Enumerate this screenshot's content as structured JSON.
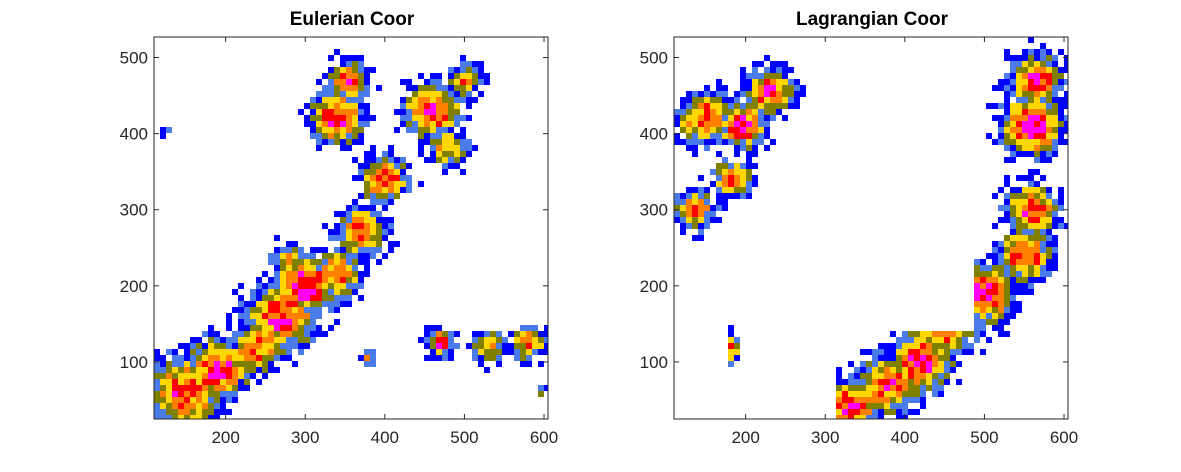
{
  "figure": {
    "background": "#ffffff",
    "colormap": [
      "#0000ff",
      "#4a7be8",
      "#808000",
      "#ffd700",
      "#ff8000",
      "#ff0000",
      "#ff00ff"
    ]
  },
  "chart_data": [
    {
      "type": "heatmap",
      "title": "Eulerian Coor",
      "xlabel": "",
      "ylabel": "",
      "xlim": [
        110,
        605
      ],
      "ylim": [
        25,
        527
      ],
      "xticks": [
        200,
        300,
        400,
        500,
        600
      ],
      "yticks": [
        100,
        200,
        300,
        400,
        500
      ],
      "grid": false,
      "description": "radar reflectivity field; precipitation band oriented SW-NE",
      "blobs": [
        {
          "x": 150,
          "y": 60,
          "r": 55,
          "intensity": 0.85
        },
        {
          "x": 190,
          "y": 90,
          "r": 45,
          "intensity": 0.9
        },
        {
          "x": 240,
          "y": 120,
          "r": 40,
          "intensity": 0.8
        },
        {
          "x": 270,
          "y": 160,
          "r": 50,
          "intensity": 0.9
        },
        {
          "x": 300,
          "y": 200,
          "r": 45,
          "intensity": 0.95
        },
        {
          "x": 340,
          "y": 215,
          "r": 35,
          "intensity": 0.85
        },
        {
          "x": 370,
          "y": 270,
          "r": 38,
          "intensity": 0.8
        },
        {
          "x": 400,
          "y": 340,
          "r": 35,
          "intensity": 0.85
        },
        {
          "x": 340,
          "y": 420,
          "r": 40,
          "intensity": 0.9
        },
        {
          "x": 355,
          "y": 470,
          "r": 30,
          "intensity": 0.85
        },
        {
          "x": 460,
          "y": 430,
          "r": 40,
          "intensity": 0.9
        },
        {
          "x": 500,
          "y": 470,
          "r": 25,
          "intensity": 0.7
        },
        {
          "x": 480,
          "y": 380,
          "r": 28,
          "intensity": 0.7
        },
        {
          "x": 280,
          "y": 235,
          "r": 28,
          "intensity": 0.6
        },
        {
          "x": 470,
          "y": 125,
          "r": 22,
          "intensity": 0.8
        },
        {
          "x": 530,
          "y": 120,
          "r": 25,
          "intensity": 0.7
        },
        {
          "x": 580,
          "y": 125,
          "r": 25,
          "intensity": 0.75
        },
        {
          "x": 380,
          "y": 105,
          "r": 12,
          "intensity": 0.6
        },
        {
          "x": 125,
          "y": 405,
          "r": 10,
          "intensity": 0.4
        },
        {
          "x": 600,
          "y": 60,
          "r": 10,
          "intensity": 0.4
        }
      ]
    },
    {
      "type": "heatmap",
      "title": "Lagrangian Coor",
      "xlabel": "",
      "ylabel": "",
      "xlim": [
        110,
        605
      ],
      "ylim": [
        25,
        527
      ],
      "xticks": [
        200,
        300,
        400,
        500,
        600
      ],
      "yticks": [
        100,
        200,
        300,
        400,
        500
      ],
      "grid": false,
      "description": "same field remapped; content shifted with blank region in upper middle",
      "blobs": [
        {
          "x": 150,
          "y": 420,
          "r": 40,
          "intensity": 0.85
        },
        {
          "x": 195,
          "y": 410,
          "r": 35,
          "intensity": 0.9
        },
        {
          "x": 230,
          "y": 455,
          "r": 35,
          "intensity": 0.85
        },
        {
          "x": 185,
          "y": 340,
          "r": 30,
          "intensity": 0.8
        },
        {
          "x": 135,
          "y": 300,
          "r": 30,
          "intensity": 0.8
        },
        {
          "x": 330,
          "y": 40,
          "r": 45,
          "intensity": 0.85
        },
        {
          "x": 380,
          "y": 70,
          "r": 45,
          "intensity": 0.85
        },
        {
          "x": 420,
          "y": 100,
          "r": 45,
          "intensity": 0.9
        },
        {
          "x": 450,
          "y": 150,
          "r": 45,
          "intensity": 0.9
        },
        {
          "x": 500,
          "y": 190,
          "r": 45,
          "intensity": 0.95
        },
        {
          "x": 550,
          "y": 240,
          "r": 40,
          "intensity": 0.85
        },
        {
          "x": 560,
          "y": 300,
          "r": 40,
          "intensity": 0.85
        },
        {
          "x": 560,
          "y": 410,
          "r": 45,
          "intensity": 0.95
        },
        {
          "x": 565,
          "y": 470,
          "r": 40,
          "intensity": 0.85
        },
        {
          "x": 180,
          "y": 120,
          "r": 22,
          "intensity": 0.8
        },
        {
          "x": 240,
          "y": 125,
          "r": 22,
          "intensity": 0.7
        },
        {
          "x": 290,
          "y": 120,
          "r": 18,
          "intensity": 0.65
        },
        {
          "x": 370,
          "y": 530,
          "r": 25,
          "intensity": 0.8
        },
        {
          "x": 345,
          "y": 530,
          "r": 20,
          "intensity": 0.7
        },
        {
          "x": 300,
          "y": 40,
          "r": 12,
          "intensity": 0.5
        }
      ],
      "mask": [
        {
          "x0": 305,
          "x1": 490,
          "y0": 140,
          "y1": 527
        },
        {
          "x0": 195,
          "x1": 315,
          "y0": 25,
          "y1": 175
        },
        {
          "x0": 110,
          "x1": 180,
          "y0": 25,
          "y1": 215
        }
      ]
    }
  ]
}
